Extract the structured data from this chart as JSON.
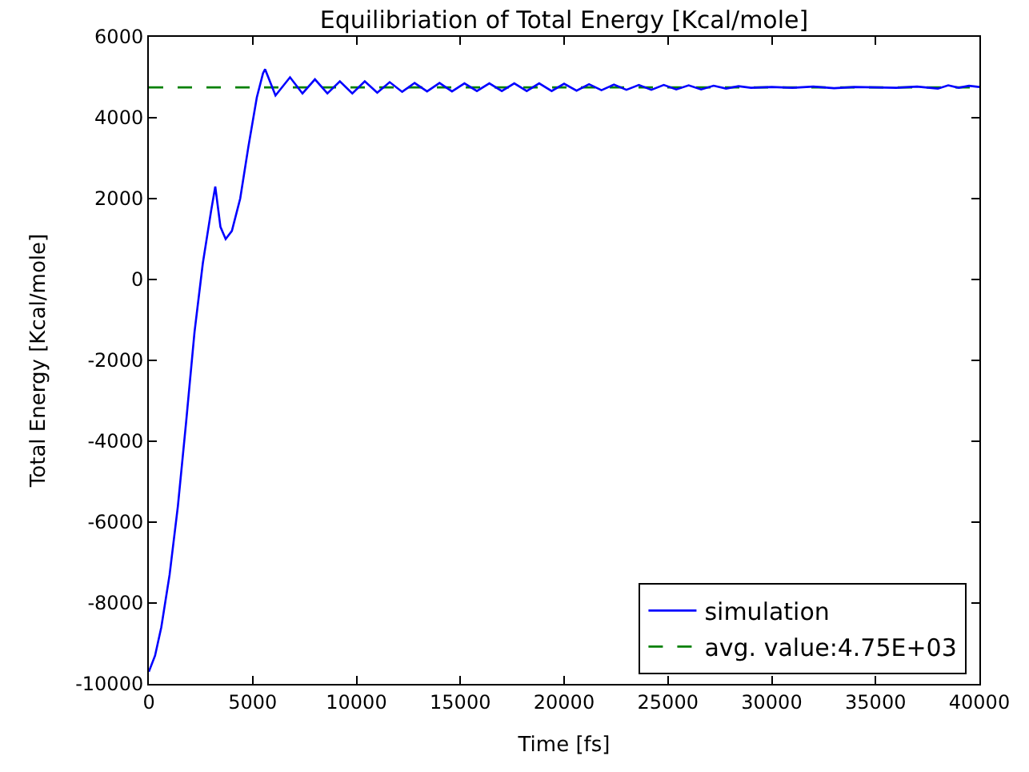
{
  "chart_data": {
    "type": "line",
    "title": "Equilibriation of Total Energy [Kcal/mole]",
    "xlabel": "Time [fs]",
    "ylabel": "Total Energy [Kcal/mole]",
    "xlim": [
      0,
      40000
    ],
    "xticks": [
      0,
      5000,
      10000,
      15000,
      20000,
      25000,
      30000,
      35000,
      40000
    ],
    "ylim": [
      -10000,
      6000
    ],
    "yticks": [
      -10000,
      -8000,
      -6000,
      -4000,
      -2000,
      0,
      2000,
      4000,
      6000
    ],
    "legend": "bottom right",
    "series": [
      {
        "name": "simulation",
        "color": "#0000ff",
        "line_style": "solid",
        "x": [
          0,
          300,
          600,
          1000,
          1400,
          1800,
          2200,
          2600,
          3000,
          3200,
          3450,
          3700,
          4000,
          4400,
          4800,
          5200,
          5500,
          5600,
          6100,
          6800,
          7400,
          8000,
          8600,
          9200,
          9800,
          10400,
          11000,
          11600,
          12200,
          12800,
          13400,
          14000,
          14600,
          15200,
          15800,
          16400,
          17000,
          17600,
          18200,
          18800,
          19400,
          20000,
          20600,
          21200,
          21800,
          22400,
          23000,
          23600,
          24200,
          24800,
          25400,
          26000,
          26600,
          27200,
          27800,
          28400,
          29000,
          30000,
          31000,
          32000,
          33000,
          34000,
          35000,
          36000,
          37000,
          38000,
          38500,
          39000,
          39500,
          40000
        ],
        "values": [
          -9700,
          -9300,
          -8600,
          -7300,
          -5600,
          -3500,
          -1300,
          400,
          1700,
          2300,
          1300,
          1000,
          1200,
          2000,
          3300,
          4500,
          5100,
          5200,
          4550,
          5000,
          4600,
          4950,
          4600,
          4900,
          4600,
          4900,
          4620,
          4880,
          4640,
          4860,
          4650,
          4860,
          4650,
          4850,
          4660,
          4850,
          4660,
          4850,
          4660,
          4850,
          4660,
          4840,
          4670,
          4830,
          4680,
          4820,
          4690,
          4810,
          4690,
          4810,
          4700,
          4800,
          4700,
          4790,
          4720,
          4780,
          4740,
          4760,
          4740,
          4770,
          4730,
          4760,
          4750,
          4740,
          4770,
          4720,
          4800,
          4740,
          4790,
          4760
        ]
      },
      {
        "name": "avg. value:4.75E+03",
        "color": "#008000",
        "line_style": "dashed",
        "x": [
          0,
          40000
        ],
        "values": [
          4750,
          4750
        ]
      }
    ]
  }
}
